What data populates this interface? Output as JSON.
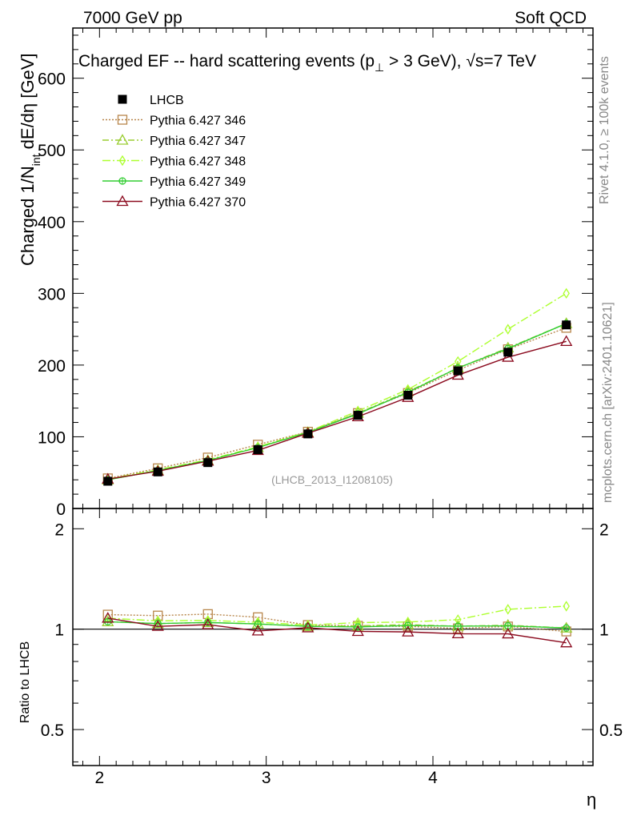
{
  "header": {
    "left": "7000 GeV pp",
    "right": "Soft QCD"
  },
  "side_labels": {
    "rivet": "Rivet 4.1.0, ≥ 100k events",
    "mcplots": "mcplots.cern.ch [arXiv:2401.10621]"
  },
  "chart_data": {
    "type": "line",
    "title": "Charged EF -- hard scattering events (p⊥ > 3 GeV), √s=7 TeV",
    "title_main": "Charged EF -- hard scattering events (p",
    "title_sub": "⊥",
    "title_tail": " > 3 GeV), ",
    "title_sqrt": "√s",
    "title_energy": "=7 TeV",
    "ylabel": "Charged 1/N",
    "ylabel_sub": "int",
    "ylabel_tail": " dE/dη [GeV]",
    "xlabel": "η",
    "ratio_ylabel": "Ratio to LHCB",
    "watermark": "(LHCB_2013_I1208105)",
    "xlim": [
      1.84,
      4.96
    ],
    "ylim": [
      0,
      670
    ],
    "ratio_ylim": [
      0.39,
      2.3
    ],
    "x_ticks": [
      "2",
      "3",
      "4"
    ],
    "y_ticks": [
      "0",
      "100",
      "200",
      "300",
      "400",
      "500",
      "600"
    ],
    "ratio_ticks": [
      "0.5",
      "1",
      "2"
    ],
    "x": [
      2.05,
      2.35,
      2.65,
      2.95,
      3.25,
      3.55,
      3.85,
      4.15,
      4.45,
      4.8
    ],
    "series": [
      {
        "name": "LHCB",
        "marker": "filled-square",
        "color": "#000000",
        "values": [
          38,
          51,
          64,
          82,
          104,
          130,
          158,
          192,
          218,
          256
        ]
      },
      {
        "name": "Pythia 6.427 346",
        "marker": "open-square",
        "color": "#b8864b",
        "values": [
          42,
          56,
          71,
          89,
          107,
          133,
          161,
          193,
          222,
          252
        ]
      },
      {
        "name": "Pythia 6.427 347",
        "marker": "open-triangle",
        "color": "#9acd32",
        "values": [
          40,
          53,
          67,
          85,
          106,
          133,
          163,
          196,
          224,
          258
        ]
      },
      {
        "name": "Pythia 6.427 348",
        "marker": "open-diamond",
        "color": "#adff2f",
        "values": [
          41,
          54,
          68,
          86,
          107,
          136,
          166,
          205,
          250,
          300
        ]
      },
      {
        "name": "Pythia 6.427 349",
        "marker": "open-circle-cross",
        "color": "#32cd32",
        "values": [
          40,
          53,
          67,
          85,
          106,
          132,
          162,
          196,
          223,
          258
        ]
      },
      {
        "name": "Pythia 6.427 370",
        "marker": "open-triangle",
        "color": "#8b0a1e",
        "values": [
          41,
          52,
          66,
          81,
          105,
          128,
          155,
          186,
          211,
          233
        ]
      }
    ]
  }
}
